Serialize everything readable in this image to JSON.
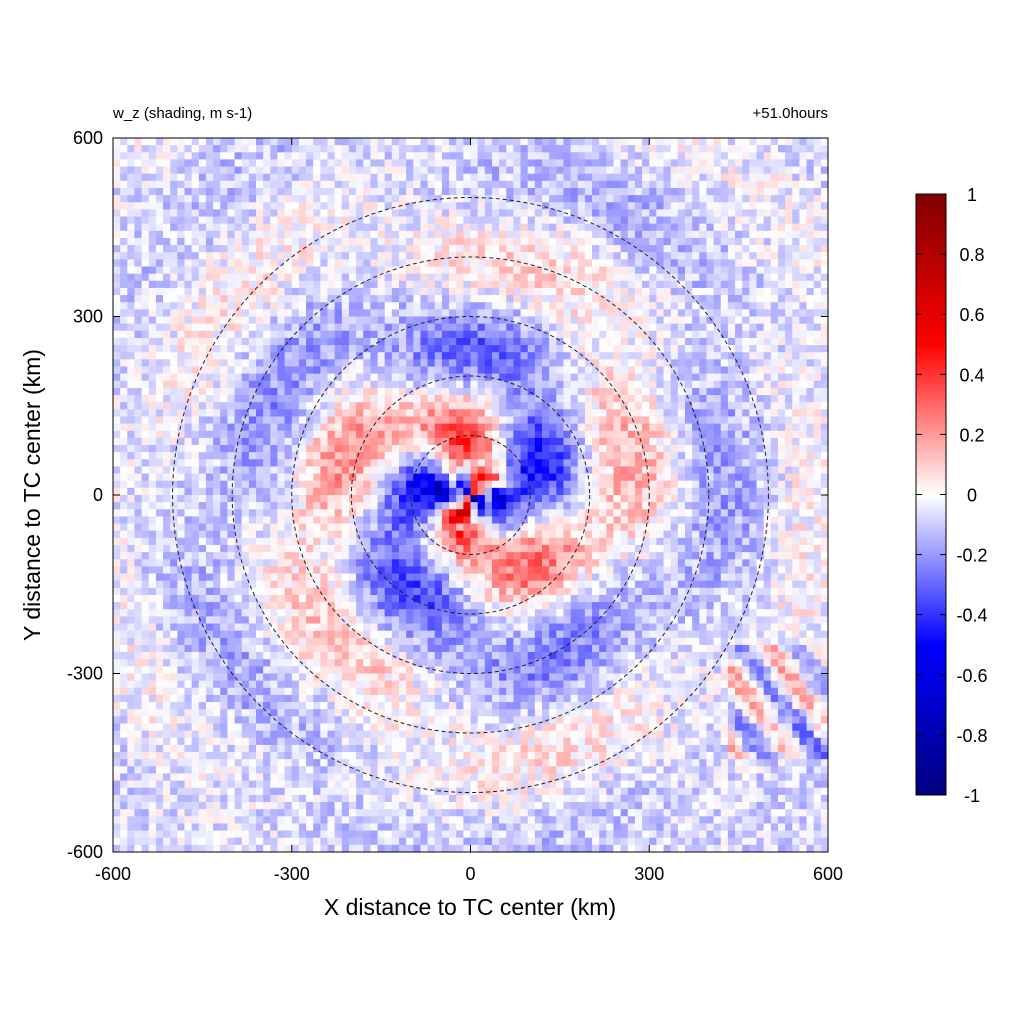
{
  "chart_data": {
    "type": "heatmap",
    "title_left": "w_z (shading, m s-1)",
    "title_right": "+51.0hours",
    "xlabel": "X distance to TC center (km)",
    "ylabel": "Y distance to TC center (km)",
    "xlim": [
      -600,
      600
    ],
    "ylim": [
      -600,
      600
    ],
    "x_ticks": [
      -600,
      -300,
      0,
      300,
      600
    ],
    "y_ticks": [
      -600,
      -300,
      0,
      300,
      600
    ],
    "x_tick_labels": [
      "-600",
      "-300",
      "0",
      "300",
      "600"
    ],
    "y_tick_labels": [
      "-600",
      "-300",
      "0",
      "300",
      "600"
    ],
    "reference_circles_km": [
      100,
      200,
      300,
      400,
      500
    ],
    "center_km": [
      0,
      0
    ],
    "colorbar": {
      "range": [
        -1,
        1
      ],
      "ticks": [
        1,
        0.8,
        0.6,
        0.4,
        0.2,
        0,
        -0.2,
        -0.4,
        -0.6,
        -0.8,
        -1
      ],
      "tick_labels": [
        "1",
        "0.8",
        "0.6",
        "0.4",
        "0.2",
        "0",
        "-0.2",
        "-0.4",
        "-0.6",
        "-0.8",
        "-1"
      ],
      "colors": {
        "min": "#00007f",
        "mid_low": "#0000ff",
        "zero": "#ffffff",
        "mid_high": "#ff0000",
        "max": "#7f0000"
      }
    }
  }
}
